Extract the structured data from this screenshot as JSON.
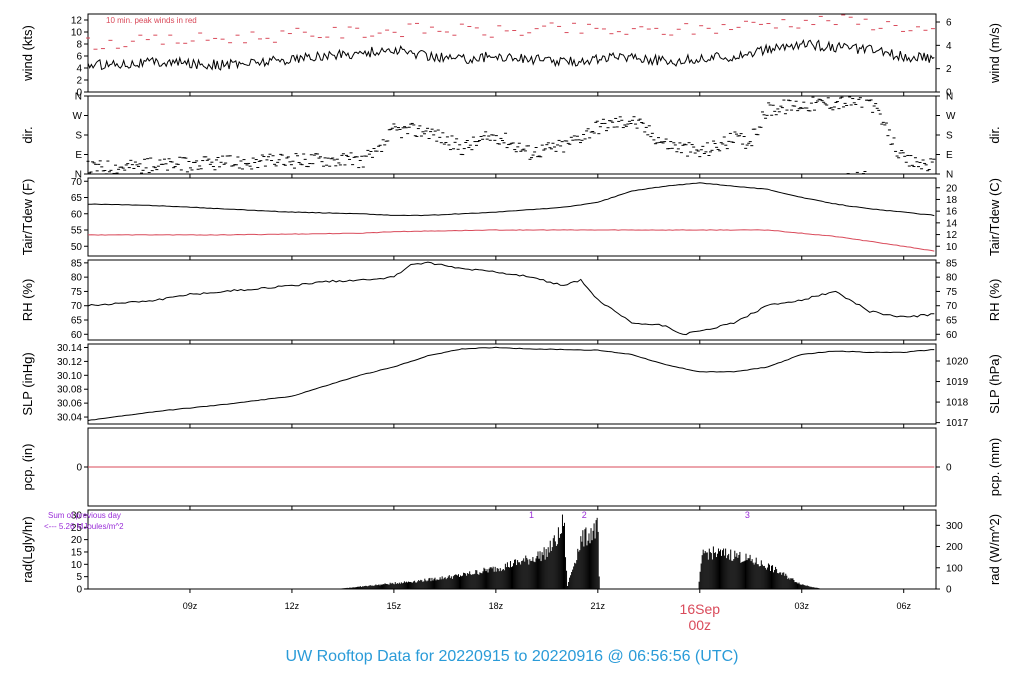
{
  "footer_title": "UW Rooftop Data for 20220915  to  20220916 @ 06:56:56  (UTC)",
  "colors": {
    "line": "#000000",
    "red": "#d94a5a",
    "purple": "#9a2ed8",
    "title": "#2a9bd8"
  },
  "time_axis": {
    "range_hours": [
      6.0,
      30.0
    ],
    "ticks": [
      {
        "h": 9,
        "label": "09z"
      },
      {
        "h": 12,
        "label": "12z"
      },
      {
        "h": 15,
        "label": "15z"
      },
      {
        "h": 18,
        "label": "18z"
      },
      {
        "h": 21,
        "label": "21z"
      },
      {
        "h": 24,
        "label": "00z"
      },
      {
        "h": 27,
        "label": "03z"
      },
      {
        "h": 30,
        "label": "06z"
      }
    ],
    "date_label": "16Sep",
    "date_label_time": "00z"
  },
  "chart_data": [
    {
      "id": "wind",
      "type": "line",
      "ylabel_left": "wind (kts)",
      "ylabel_right": "wind (m/s)",
      "annotation": "10 min. peak winds in red",
      "ylim": [
        0,
        13
      ],
      "left_ticks": [
        0,
        2,
        4,
        6,
        8,
        10,
        12
      ],
      "right_ticks": [
        {
          "v": 0,
          "label": "0"
        },
        {
          "v": 2,
          "label": "2"
        },
        {
          "v": 4,
          "label": "4"
        },
        {
          "v": 6,
          "label": "6"
        }
      ],
      "right_unit_factor": 0.5144,
      "series": [
        {
          "color": "#000000",
          "x": [
            6.0,
            8,
            10,
            12,
            13,
            14,
            15,
            16,
            17,
            18,
            19,
            20,
            21,
            22,
            23,
            24,
            25,
            26,
            27,
            28,
            29,
            30,
            30.9
          ],
          "y": [
            4.5,
            5,
            4.5,
            5.5,
            6,
            6.5,
            7,
            6,
            5.5,
            6,
            5.5,
            5,
            5.5,
            6,
            5,
            5.5,
            6,
            7,
            8,
            7.5,
            7,
            6,
            5.5
          ]
        },
        {
          "color": "#d94a5a",
          "style": "dash",
          "x": [
            6.0,
            8,
            10,
            12,
            14,
            16,
            18,
            20,
            22,
            24,
            26,
            28,
            30,
            30.9
          ],
          "y": [
            8,
            8.5,
            9,
            9.5,
            10,
            10.5,
            10,
            10.5,
            10,
            10.5,
            11.5,
            12,
            11,
            10
          ]
        }
      ]
    },
    {
      "id": "dir",
      "type": "scatter",
      "ylabel_left": "dir.",
      "ylabel_right": "dir.",
      "ylim": [
        0,
        360
      ],
      "ticks": [
        {
          "v": 0,
          "label": "N"
        },
        {
          "v": 90,
          "label": "E"
        },
        {
          "v": 180,
          "label": "S"
        },
        {
          "v": 270,
          "label": "W"
        },
        {
          "v": 360,
          "label": "N"
        }
      ],
      "series": [
        {
          "color": "#000000",
          "x": [
            6.0,
            8,
            10,
            12,
            13,
            14,
            14.5,
            15,
            16,
            17,
            18,
            19,
            20,
            21,
            22,
            23,
            24,
            25,
            25.5,
            26,
            27,
            28,
            29,
            30,
            30.9
          ],
          "y": [
            30,
            40,
            50,
            60,
            70,
            60,
            90,
            200,
            200,
            120,
            180,
            100,
            130,
            220,
            250,
            140,
            100,
            160,
            150,
            300,
            320,
            330,
            340,
            60,
            40
          ]
        }
      ]
    },
    {
      "id": "temp",
      "type": "line",
      "ylabel_left": "Tair/Tdew (F)",
      "ylabel_right": "Tair/Tdew (C)",
      "ylim": [
        47,
        71
      ],
      "left_ticks": [
        50,
        55,
        60,
        65,
        70
      ],
      "right_ticks": [
        {
          "v": 10,
          "label": "10"
        },
        {
          "v": 12,
          "label": "12"
        },
        {
          "v": 14,
          "label": "14"
        },
        {
          "v": 16,
          "label": "16"
        },
        {
          "v": 18,
          "label": "18"
        },
        {
          "v": 20,
          "label": "20"
        }
      ],
      "right_unit": "C",
      "series": [
        {
          "color": "#000000",
          "x": [
            6.0,
            8,
            10,
            12,
            14,
            15,
            16,
            18,
            20,
            21,
            22,
            23,
            24,
            25,
            26,
            27,
            28,
            29,
            30,
            30.9
          ],
          "y": [
            63,
            62.5,
            61.5,
            60.5,
            60,
            59.5,
            59.5,
            60.5,
            62,
            63.5,
            67,
            68.5,
            69.5,
            68.5,
            67.5,
            65,
            63,
            61.5,
            60.5,
            59.5
          ]
        },
        {
          "color": "#d94a5a",
          "x": [
            6.0,
            10,
            14,
            15,
            18,
            21,
            24,
            26,
            27,
            28,
            29,
            30,
            30.9
          ],
          "y": [
            53.5,
            53.5,
            54,
            54.5,
            55,
            55,
            55,
            55,
            54,
            53,
            51.5,
            50,
            48.5
          ]
        }
      ]
    },
    {
      "id": "rh",
      "type": "line",
      "ylabel_left": "RH (%)",
      "ylabel_right": "RH (%)",
      "ylim": [
        58,
        86
      ],
      "left_ticks": [
        60,
        65,
        70,
        75,
        80,
        85
      ],
      "right_ticks": [
        {
          "v": 60,
          "label": "60"
        },
        {
          "v": 65,
          "label": "65"
        },
        {
          "v": 70,
          "label": "70"
        },
        {
          "v": 75,
          "label": "75"
        },
        {
          "v": 80,
          "label": "80"
        },
        {
          "v": 85,
          "label": "85"
        }
      ],
      "series": [
        {
          "color": "#000000",
          "x": [
            6.0,
            7,
            8,
            9,
            10,
            11,
            12,
            13,
            14,
            15,
            15.5,
            16,
            17,
            18,
            19,
            20,
            20.5,
            21,
            22,
            23,
            23.5,
            24,
            25,
            26,
            27,
            28,
            29,
            30,
            30.9
          ],
          "y": [
            70,
            71,
            72,
            74,
            75,
            76,
            77,
            78.5,
            79,
            80,
            84.5,
            85,
            83,
            82,
            80,
            77,
            79,
            72,
            64,
            63,
            60,
            61,
            64,
            70,
            72,
            75,
            68,
            66,
            67
          ]
        }
      ]
    },
    {
      "id": "slp",
      "type": "line",
      "ylabel_left": "SLP (inHg)",
      "ylabel_right": "SLP (hPa)",
      "ylim": [
        30.03,
        30.145
      ],
      "left_ticks": [
        {
          "v": 30.04,
          "label": "30.04"
        },
        {
          "v": 30.06,
          "label": "30.06"
        },
        {
          "v": 30.08,
          "label": "30.08"
        },
        {
          "v": 30.1,
          "label": "30.10"
        },
        {
          "v": 30.12,
          "label": "30.12"
        },
        {
          "v": 30.14,
          "label": "30.14"
        }
      ],
      "right_ticks": [
        {
          "v": 1017,
          "label": "1017"
        },
        {
          "v": 1018,
          "label": "1018"
        },
        {
          "v": 1019,
          "label": "1019"
        },
        {
          "v": 1020,
          "label": "1020"
        }
      ],
      "right_unit": "hPa",
      "series": [
        {
          "color": "#000000",
          "x": [
            6.0,
            8,
            10,
            12,
            13,
            14,
            15,
            16,
            17,
            18,
            19,
            20,
            21,
            22,
            23,
            24,
            25,
            26,
            27,
            28,
            29,
            30,
            30.9
          ],
          "y": [
            30.035,
            30.048,
            30.058,
            30.07,
            30.085,
            30.1,
            30.112,
            30.128,
            30.138,
            30.14,
            30.138,
            30.137,
            30.136,
            30.13,
            30.115,
            30.105,
            30.105,
            30.112,
            30.13,
            30.135,
            30.133,
            30.133,
            30.137
          ]
        }
      ]
    },
    {
      "id": "pcp",
      "type": "line",
      "ylabel_left": "pcp. (in)",
      "ylabel_right": "pcp. (mm)",
      "ylim": [
        -1,
        1
      ],
      "left_ticks": [
        {
          "v": 0,
          "label": "0"
        }
      ],
      "right_ticks": [
        {
          "v": 0,
          "label": "0"
        }
      ],
      "series": [
        {
          "color": "#d94a5a",
          "x": [
            6.0,
            30.9
          ],
          "y": [
            0,
            0
          ]
        }
      ]
    },
    {
      "id": "rad",
      "type": "area",
      "ylabel_left": "rad(Lgly/hr)",
      "ylabel_right": "rad (W/m^2)",
      "ylim": [
        0,
        32
      ],
      "left_ticks": [
        0,
        5,
        10,
        15,
        20,
        25,
        30
      ],
      "right_ticks": [
        {
          "v": 0,
          "label": "0"
        },
        {
          "v": 100,
          "label": "100"
        },
        {
          "v": 200,
          "label": "200"
        },
        {
          "v": 300,
          "label": "300"
        }
      ],
      "right_unit_factor": 11.63,
      "annotations": [
        "Sum of previous day",
        "<--- 5.26 MJoules/m^2"
      ],
      "markers": [
        {
          "h": 19.05,
          "label": "1"
        },
        {
          "h": 20.6,
          "label": "2"
        },
        {
          "h": 25.4,
          "label": "3"
        }
      ],
      "series": [
        {
          "color": "#000000",
          "x": [
            13.3,
            14,
            15,
            16,
            17,
            18,
            19,
            19.5,
            19.9,
            20,
            20.1,
            20.5,
            21,
            21.05,
            23.95,
            24.1,
            25,
            26,
            27,
            27.6
          ],
          "y": [
            0,
            1,
            2.5,
            4,
            6,
            9,
            13,
            16,
            24,
            31,
            1,
            21,
            27,
            0,
            0,
            16,
            15,
            10,
            2,
            0
          ]
        }
      ]
    }
  ]
}
